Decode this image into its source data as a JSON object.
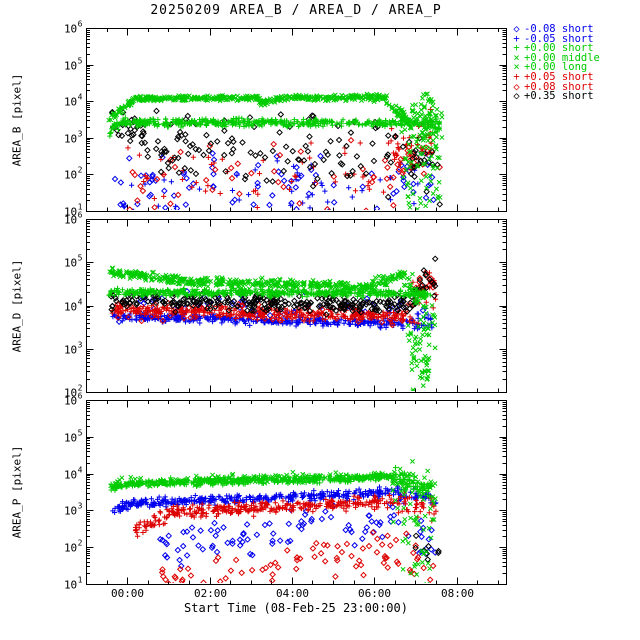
{
  "figure": {
    "title": "20250209 AREA_B / AREA_D / AREA_P",
    "xlabel": "Start Time (08-Feb-25 23:00:00)",
    "background": "#ffffff"
  },
  "colors": {
    "blue": "#0000ee",
    "green": "#00cc00",
    "red": "#dd0000",
    "black": "#000000"
  },
  "legend": {
    "entries": [
      {
        "symbol": "diamond",
        "color": "blue",
        "label": "-0.08 short"
      },
      {
        "symbol": "plus",
        "color": "blue",
        "label": "-0.05 short"
      },
      {
        "symbol": "plus",
        "color": "green",
        "label": "+0.00 short"
      },
      {
        "symbol": "cross",
        "color": "green",
        "label": "+0.00 middle"
      },
      {
        "symbol": "cross",
        "color": "green",
        "label": "+0.00 long"
      },
      {
        "symbol": "plus",
        "color": "red",
        "label": "+0.05 short"
      },
      {
        "symbol": "diamond",
        "color": "red",
        "label": "+0.08 short"
      },
      {
        "symbol": "diamond",
        "color": "black",
        "label": "+0.35 short"
      }
    ]
  },
  "chart_data": [
    {
      "type": "scatter",
      "name": "AREA_B",
      "ylabel": "AREA_B [pixel]",
      "yscale": "log",
      "ylim": [
        10,
        1000000
      ],
      "xlim_hours": [
        -1.0,
        9.2
      ],
      "xtick_labels": false,
      "xticks": [
        {
          "hour": 0,
          "label": "00:00"
        },
        {
          "hour": 2,
          "label": "02:00"
        },
        {
          "hour": 4,
          "label": "04:00"
        },
        {
          "hour": 6,
          "label": "06:00"
        },
        {
          "hour": 8,
          "label": "08:00"
        }
      ],
      "series": [
        {
          "name": "-0.08 short",
          "color": "blue",
          "symbol": "diamond",
          "segments": [
            {
              "x0": -0.3,
              "x1": 6.5,
              "n": 70,
              "ly0": 1.65,
              "ly1": 1.55,
              "s": 0.45
            },
            {
              "x0": 6.5,
              "x1": 7.5,
              "n": 18,
              "ly0": 1.9,
              "ly1": 1.8,
              "s": 0.5
            }
          ]
        },
        {
          "name": "-0.05 short",
          "color": "blue",
          "symbol": "plus",
          "segments": [
            {
              "x0": -0.2,
              "x1": 7.4,
              "n": 45,
              "ly0": 1.45,
              "ly1": 1.4,
              "s": 0.4
            }
          ]
        },
        {
          "name": "+0.05 short",
          "color": "red",
          "symbol": "plus",
          "segments": [
            {
              "x0": -0.2,
              "x1": 6.4,
              "n": 55,
              "ly0": 1.9,
              "ly1": 2.0,
              "s": 0.45
            },
            {
              "x0": 6.4,
              "x1": 7.6,
              "n": 40,
              "ly0": 2.7,
              "ly1": 3.0,
              "s": 0.35
            }
          ]
        },
        {
          "name": "+0.08 short",
          "color": "red",
          "symbol": "diamond",
          "segments": [
            {
              "x0": 0.0,
              "x1": 6.5,
              "n": 45,
              "ly0": 1.8,
              "ly1": 1.95,
              "s": 0.45
            },
            {
              "x0": 6.5,
              "x1": 7.6,
              "n": 25,
              "ly0": 2.3,
              "ly1": 2.7,
              "s": 0.4
            }
          ]
        },
        {
          "name": "+0.35 short",
          "color": "black",
          "symbol": "diamond",
          "segments": [
            {
              "x0": -0.4,
              "x1": 0.5,
              "n": 28,
              "ly0": 3.3,
              "ly1": 3.1,
              "s": 0.22
            },
            {
              "x0": 0.4,
              "x1": 7.0,
              "n": 115,
              "ly0": 2.75,
              "ly1": 2.5,
              "s": 0.45
            },
            {
              "x0": 6.8,
              "x1": 7.6,
              "n": 18,
              "ly0": 2.3,
              "ly1": 2.2,
              "s": 0.5
            }
          ]
        },
        {
          "name": "+0.00 long",
          "color": "green",
          "symbol": "cross",
          "segments": [
            {
              "x0": 6.6,
              "x1": 7.65,
              "n": 60,
              "ly0": 3.3,
              "ly1": 3.2,
              "s": 0.45
            },
            {
              "x0": 6.7,
              "x1": 7.6,
              "n": 45,
              "ly0": 1.8,
              "ly1": 1.6,
              "s": 0.5
            }
          ]
        },
        {
          "name": "+0.00 short",
          "color": "green",
          "symbol": "plus",
          "segments": [
            {
              "x0": -0.45,
              "x1": -0.1,
              "n": 25,
              "ly0": 3.15,
              "ly1": 3.4,
              "s": 0.06
            },
            {
              "x0": -0.1,
              "x1": 7.3,
              "n": 430,
              "ly0": 3.42,
              "ly1": 3.4,
              "s": 0.05
            },
            {
              "x0": 7.3,
              "x1": 7.6,
              "n": 22,
              "ly0": 3.4,
              "ly1": 3.3,
              "s": 0.12
            }
          ]
        },
        {
          "name": "+0.00 middle",
          "color": "green",
          "symbol": "cross",
          "segments": [
            {
              "x0": -0.45,
              "x1": 0.2,
              "n": 40,
              "ly0": 3.5,
              "ly1": 4.05,
              "s": 0.05
            },
            {
              "x0": 0.2,
              "x1": 3.2,
              "n": 200,
              "ly0": 4.07,
              "ly1": 4.09,
              "s": 0.04
            },
            {
              "x0": 3.2,
              "x1": 3.6,
              "n": 25,
              "ly0": 4.0,
              "ly1": 4.0,
              "s": 0.05
            },
            {
              "x0": 3.6,
              "x1": 6.3,
              "n": 180,
              "ly0": 4.09,
              "ly1": 4.1,
              "s": 0.04
            },
            {
              "x0": 6.3,
              "x1": 6.9,
              "n": 45,
              "ly0": 4.05,
              "ly1": 3.35,
              "s": 0.08
            },
            {
              "x0": 6.9,
              "x1": 7.5,
              "n": 35,
              "ly0": 3.5,
              "ly1": 3.9,
              "s": 0.3
            }
          ]
        }
      ]
    },
    {
      "type": "scatter",
      "name": "AREA_D",
      "ylabel": "AREA_D [pixel]",
      "yscale": "log",
      "ylim": [
        100,
        1000000
      ],
      "xlim_hours": [
        -1.0,
        9.2
      ],
      "xtick_labels": false,
      "xticks": [
        {
          "hour": 0,
          "label": "00:00"
        },
        {
          "hour": 2,
          "label": "02:00"
        },
        {
          "hour": 4,
          "label": "04:00"
        },
        {
          "hour": 6,
          "label": "06:00"
        },
        {
          "hour": 8,
          "label": "08:00"
        }
      ],
      "series": [
        {
          "name": "-0.05 short",
          "color": "blue",
          "symbol": "plus",
          "segments": [
            {
              "x0": -0.4,
              "x1": 6.8,
              "n": 340,
              "ly0": 3.75,
              "ly1": 3.58,
              "s": 0.05
            },
            {
              "x0": 6.8,
              "x1": 7.4,
              "n": 28,
              "ly0": 3.6,
              "ly1": 3.7,
              "s": 0.12
            }
          ]
        },
        {
          "name": "-0.08 short",
          "color": "blue",
          "symbol": "diamond",
          "segments": [
            {
              "x0": -0.3,
              "x1": 7.3,
              "n": 55,
              "ly0": 4.0,
              "ly1": 3.9,
              "s": 0.15
            }
          ]
        },
        {
          "name": "+0.05 short",
          "color": "red",
          "symbol": "plus",
          "segments": [
            {
              "x0": -0.4,
              "x1": 6.8,
              "n": 300,
              "ly0": 3.9,
              "ly1": 3.74,
              "s": 0.06
            },
            {
              "x0": 6.8,
              "x1": 7.5,
              "n": 32,
              "ly0": 3.9,
              "ly1": 4.4,
              "s": 0.22
            }
          ]
        },
        {
          "name": "+0.08 short",
          "color": "red",
          "symbol": "diamond",
          "segments": [
            {
              "x0": -0.3,
              "x1": 7.0,
              "n": 85,
              "ly0": 3.85,
              "ly1": 3.8,
              "s": 0.12
            },
            {
              "x0": 6.9,
              "x1": 7.5,
              "n": 14,
              "ly0": 4.45,
              "ly1": 4.6,
              "s": 0.18
            }
          ]
        },
        {
          "name": "+0.35 short",
          "color": "black",
          "symbol": "diamond",
          "segments": [
            {
              "x0": -0.4,
              "x1": 6.8,
              "n": 260,
              "ly0": 4.1,
              "ly1": 4.02,
              "s": 0.09
            },
            {
              "x0": 6.8,
              "x1": 7.5,
              "n": 26,
              "ly0": 4.15,
              "ly1": 4.6,
              "s": 0.22
            }
          ]
        },
        {
          "name": "+0.00 long",
          "color": "green",
          "symbol": "cross",
          "segments": [
            {
              "x0": 6.8,
              "x1": 7.35,
              "n": 50,
              "ly0": 3.0,
              "ly1": 2.5,
              "s": 0.45
            },
            {
              "x0": 7.0,
              "x1": 7.5,
              "n": 28,
              "ly0": 3.8,
              "ly1": 3.6,
              "s": 0.3
            }
          ]
        },
        {
          "name": "+0.00 short",
          "color": "green",
          "symbol": "plus",
          "segments": [
            {
              "x0": -0.45,
              "x1": 7.4,
              "n": 460,
              "ly0": 4.31,
              "ly1": 4.28,
              "s": 0.04
            }
          ]
        },
        {
          "name": "+0.00 middle",
          "color": "green",
          "symbol": "cross",
          "segments": [
            {
              "x0": -0.45,
              "x1": 1.5,
              "n": 120,
              "ly0": 4.8,
              "ly1": 4.55,
              "s": 0.05
            },
            {
              "x0": 1.5,
              "x1": 5.8,
              "n": 250,
              "ly0": 4.55,
              "ly1": 4.45,
              "s": 0.05
            },
            {
              "x0": 5.8,
              "x1": 6.7,
              "n": 55,
              "ly0": 4.45,
              "ly1": 4.72,
              "s": 0.06
            },
            {
              "x0": 6.7,
              "x1": 7.2,
              "n": 26,
              "ly0": 4.7,
              "ly1": 4.1,
              "s": 0.15
            }
          ]
        }
      ]
    },
    {
      "type": "scatter",
      "name": "AREA_P",
      "ylabel": "AREA_P [pixel]",
      "yscale": "log",
      "ylim": [
        10,
        1000000
      ],
      "xlim_hours": [
        -1.0,
        9.2
      ],
      "xtick_labels": true,
      "xticks": [
        {
          "hour": 0,
          "label": "00:00"
        },
        {
          "hour": 2,
          "label": "02:00"
        },
        {
          "hour": 4,
          "label": "04:00"
        },
        {
          "hour": 6,
          "label": "06:00"
        },
        {
          "hour": 8,
          "label": "08:00"
        }
      ],
      "series": [
        {
          "name": "-0.08 short",
          "color": "blue",
          "symbol": "diamond",
          "segments": [
            {
              "x0": 0.8,
              "x1": 6.5,
              "n": 85,
              "ly0": 2.0,
              "ly1": 2.8,
              "s": 0.3
            },
            {
              "x0": 6.5,
              "x1": 7.5,
              "n": 14,
              "ly0": 2.5,
              "ly1": 2.2,
              "s": 0.3
            }
          ]
        },
        {
          "name": "+0.08 short",
          "color": "red",
          "symbol": "diamond",
          "segments": [
            {
              "x0": 0.8,
              "x1": 6.8,
              "n": 75,
              "ly0": 1.2,
              "ly1": 1.9,
              "s": 0.3
            },
            {
              "x0": 6.8,
              "x1": 7.5,
              "n": 10,
              "ly0": 1.6,
              "ly1": 1.5,
              "s": 0.3
            }
          ]
        },
        {
          "name": "+0.35 short",
          "color": "black",
          "symbol": "diamond",
          "segments": [
            {
              "x0": 6.9,
              "x1": 7.6,
              "n": 8,
              "ly0": 2.2,
              "ly1": 2.1,
              "s": 0.3
            }
          ]
        },
        {
          "name": "-0.05 short",
          "color": "blue",
          "symbol": "plus",
          "segments": [
            {
              "x0": -0.35,
              "x1": 0.0,
              "n": 25,
              "ly0": 3.0,
              "ly1": 3.15,
              "s": 0.06
            },
            {
              "x0": 0.0,
              "x1": 6.5,
              "n": 330,
              "ly0": 3.18,
              "ly1": 3.5,
              "s": 0.06
            },
            {
              "x0": 6.5,
              "x1": 7.5,
              "n": 45,
              "ly0": 3.5,
              "ly1": 3.3,
              "s": 0.1
            }
          ]
        },
        {
          "name": "+0.05 short",
          "color": "red",
          "symbol": "plus",
          "segments": [
            {
              "x0": 0.2,
              "x1": 1.0,
              "n": 40,
              "ly0": 2.5,
              "ly1": 2.9,
              "s": 0.12
            },
            {
              "x0": 1.0,
              "x1": 6.5,
              "n": 280,
              "ly0": 2.95,
              "ly1": 3.25,
              "s": 0.08
            },
            {
              "x0": 6.5,
              "x1": 7.5,
              "n": 38,
              "ly0": 3.25,
              "ly1": 3.0,
              "s": 0.15
            }
          ]
        },
        {
          "name": "+0.00 long",
          "color": "green",
          "symbol": "cross",
          "segments": [
            {
              "x0": 6.4,
              "x1": 7.5,
              "n": 45,
              "ly0": 3.3,
              "ly1": 3.0,
              "s": 0.5
            },
            {
              "x0": 6.6,
              "x1": 7.4,
              "n": 22,
              "ly0": 2.0,
              "ly1": 1.8,
              "s": 0.5
            }
          ]
        },
        {
          "name": "+0.00 middle",
          "color": "green",
          "symbol": "cross",
          "segments": [
            {
              "x0": -0.4,
              "x1": 6.5,
              "n": 150,
              "ly0": 3.75,
              "ly1": 3.95,
              "s": 0.06
            },
            {
              "x0": 6.5,
              "x1": 7.4,
              "n": 22,
              "ly0": 3.9,
              "ly1": 3.6,
              "s": 0.15
            }
          ]
        },
        {
          "name": "+0.00 short",
          "color": "green",
          "symbol": "plus",
          "segments": [
            {
              "x0": -0.4,
              "x1": 0.0,
              "n": 30,
              "ly0": 3.6,
              "ly1": 3.72,
              "s": 0.05
            },
            {
              "x0": 0.0,
              "x1": 6.5,
              "n": 420,
              "ly0": 3.73,
              "ly1": 3.9,
              "s": 0.05
            },
            {
              "x0": 6.5,
              "x1": 7.4,
              "n": 55,
              "ly0": 3.9,
              "ly1": 3.55,
              "s": 0.12
            }
          ]
        }
      ]
    }
  ]
}
